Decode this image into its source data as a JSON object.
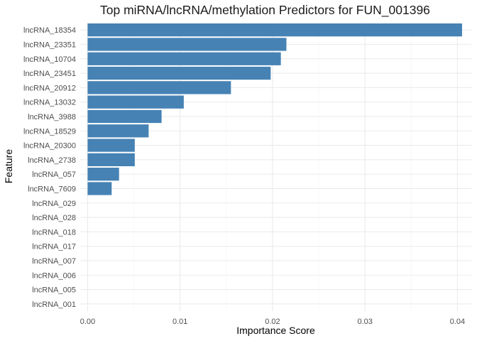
{
  "chart_data": {
    "type": "bar",
    "orientation": "horizontal",
    "title": "Top miRNA/lncRNA/methylation Predictors for FUN_001396",
    "xlabel": "Importance Score",
    "ylabel": "Feature",
    "xlim": [
      -0.0008,
      0.0415
    ],
    "x_ticks": [
      0.0,
      0.01,
      0.02,
      0.03,
      0.04
    ],
    "x_tick_labels": [
      "0.00",
      "0.01",
      "0.02",
      "0.03",
      "0.04"
    ],
    "grid": true,
    "legend": "none",
    "bar_color": "#4682B4",
    "categories": [
      "lncRNA_18354",
      "lncRNA_23351",
      "lncRNA_10704",
      "lncRNA_23451",
      "lncRNA_20912",
      "lncRNA_13032",
      "lncRNA_3988",
      "lncRNA_18529",
      "lncRNA_20300",
      "lncRNA_2738",
      "lncRNA_057",
      "lncRNA_7609",
      "lncRNA_029",
      "lncRNA_028",
      "lncRNA_018",
      "lncRNA_017",
      "lncRNA_007",
      "lncRNA_006",
      "lncRNA_005",
      "lncRNA_001"
    ],
    "values": [
      0.0405,
      0.0215,
      0.0209,
      0.0198,
      0.0155,
      0.0104,
      0.008,
      0.0066,
      0.0051,
      0.0051,
      0.0034,
      0.0026,
      0,
      0,
      0,
      0,
      0,
      0,
      0,
      0
    ]
  }
}
